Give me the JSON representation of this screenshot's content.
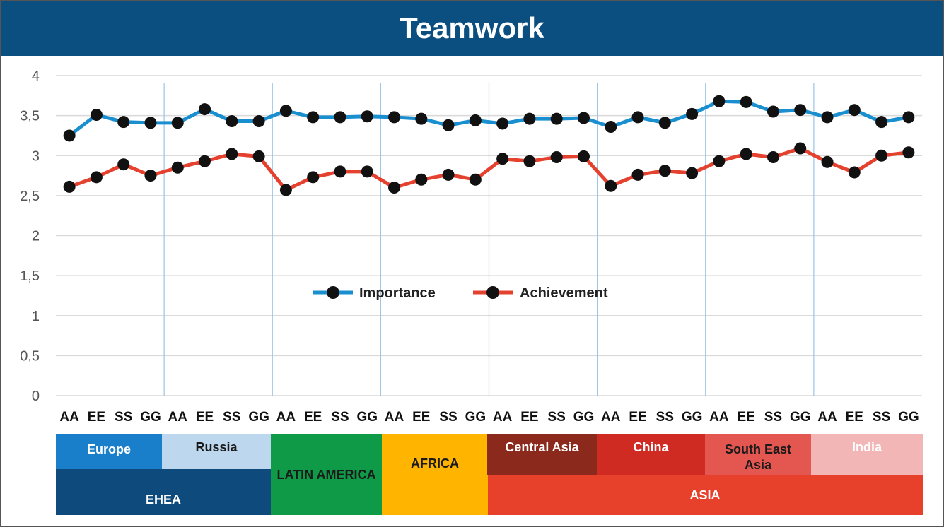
{
  "colors": {
    "title_bg": "#0a4f80",
    "importance": "#1a8fd0",
    "achievement": "#e5412f",
    "marker": "#111111",
    "grid": "#d9d9d9",
    "separator": "#9cc3e6"
  },
  "chart_data": {
    "type": "line",
    "title": "Teamwork",
    "ylim": [
      0,
      4
    ],
    "yticks": [
      "0",
      "0,5",
      "1",
      "1,5",
      "2",
      "2,5",
      "3",
      "3,5",
      "4"
    ],
    "ytick_values": [
      0,
      0.5,
      1,
      1.5,
      2,
      2.5,
      3,
      3.5,
      4
    ],
    "grid": true,
    "legend_placement": "center",
    "categories": [
      "AA",
      "EE",
      "SS",
      "GG",
      "AA",
      "EE",
      "SS",
      "GG",
      "AA",
      "EE",
      "SS",
      "GG",
      "AA",
      "EE",
      "SS",
      "GG",
      "AA",
      "EE",
      "SS",
      "GG",
      "AA",
      "EE",
      "SS",
      "GG",
      "AA",
      "EE",
      "SS",
      "GG",
      "AA",
      "EE",
      "SS",
      "GG"
    ],
    "series": [
      {
        "name": "Importance",
        "color": "#1a8fd0",
        "values": [
          3.25,
          3.51,
          3.42,
          3.41,
          3.41,
          3.58,
          3.43,
          3.43,
          3.56,
          3.48,
          3.48,
          3.49,
          3.48,
          3.46,
          3.38,
          3.44,
          3.4,
          3.46,
          3.46,
          3.47,
          3.36,
          3.48,
          3.41,
          3.52,
          3.68,
          3.67,
          3.55,
          3.57,
          3.48,
          3.57,
          3.42,
          3.48
        ]
      },
      {
        "name": "Achievement",
        "color": "#e5412f",
        "values": [
          2.61,
          2.73,
          2.89,
          2.75,
          2.85,
          2.93,
          3.02,
          2.99,
          2.57,
          2.73,
          2.8,
          2.8,
          2.6,
          2.7,
          2.76,
          2.7,
          2.96,
          2.93,
          2.98,
          2.99,
          2.62,
          2.76,
          2.81,
          2.78,
          2.93,
          3.02,
          2.98,
          3.09,
          2.92,
          2.79,
          3.0,
          3.04
        ]
      }
    ],
    "regions": [
      {
        "label": "Europe",
        "bg": "#1a7fcb",
        "fg": "#ffffff"
      },
      {
        "label": "Russia",
        "bg": "#bdd7ee",
        "fg": "#1a1a1a"
      },
      {
        "label": "LATIN AMERICA",
        "bg": "#0f9a48",
        "fg": "#1a1a1a"
      },
      {
        "label": "AFRICA",
        "bg": "#ffb400",
        "fg": "#1a1a1a"
      },
      {
        "label": "Central Asia",
        "bg": "#8b2a1c",
        "fg": "#ffffff"
      },
      {
        "label": "China",
        "bg": "#cf2b22",
        "fg": "#ffffff"
      },
      {
        "label": "South East Asia",
        "bg": "#e35750",
        "fg": "#1a1a1a"
      },
      {
        "label": "India",
        "bg": "#f2b6b6",
        "fg": "#ffffff"
      }
    ],
    "super_regions": [
      {
        "label": "EHEA",
        "bg": "#0f4a7c",
        "fg": "#ffffff"
      },
      {
        "label": "ASIA",
        "bg": "#e7412c",
        "fg": "#ffffff"
      }
    ]
  }
}
